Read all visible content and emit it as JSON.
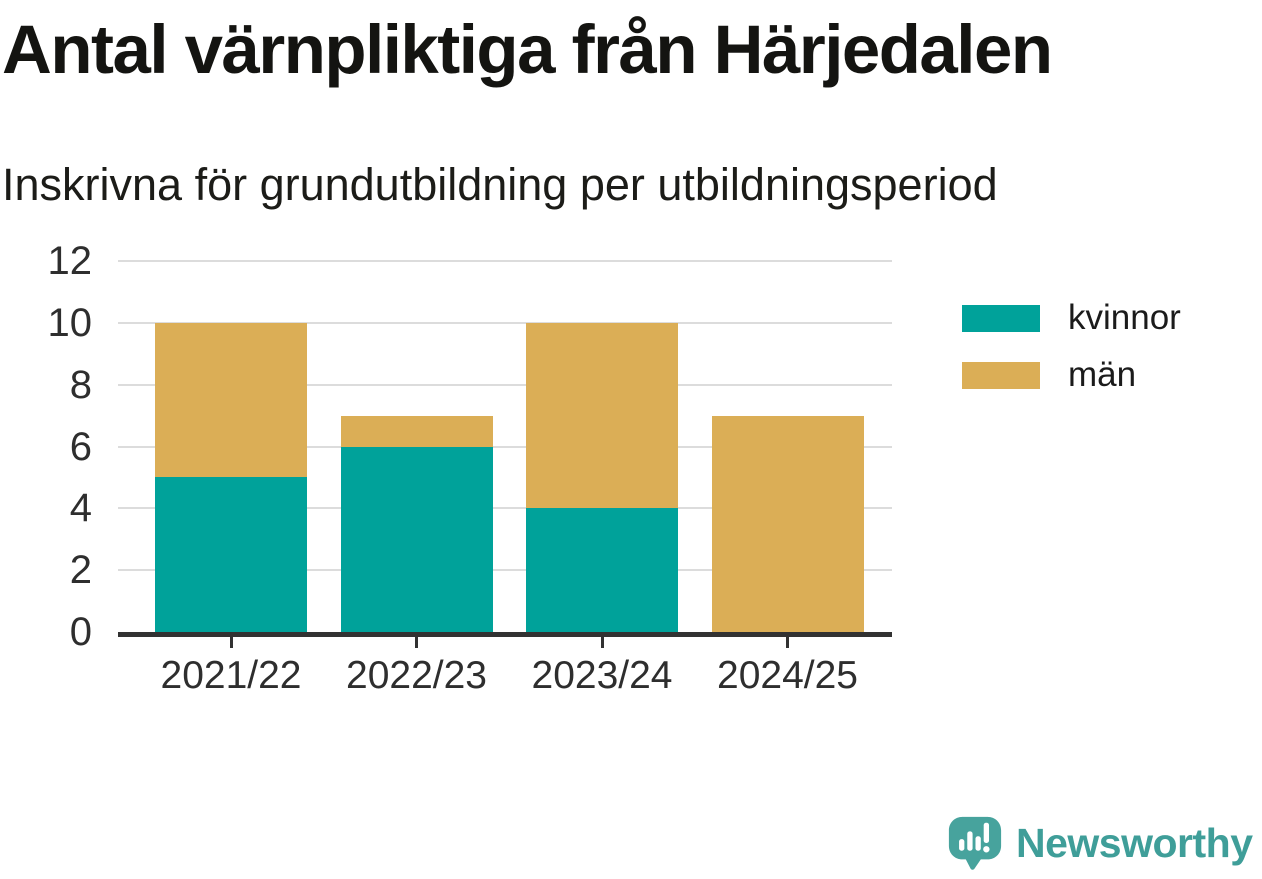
{
  "title": "Antal värnpliktiga från Härjedalen",
  "subtitle": "Inskrivna för grundutbildning per utbildningsperiod",
  "chart_data": {
    "type": "bar",
    "stacked": true,
    "title": "Antal värnpliktiga från Härjedalen",
    "subtitle": "Inskrivna för grundutbildning per utbildningsperiod",
    "categories": [
      "2021/22",
      "2022/23",
      "2023/24",
      "2024/25"
    ],
    "series": [
      {
        "name": "kvinnor",
        "color": "#00a29a",
        "values": [
          5,
          6,
          4,
          0
        ]
      },
      {
        "name": "män",
        "color": "#dbae56",
        "values": [
          5,
          1,
          6,
          7
        ]
      }
    ],
    "stack_totals": [
      10,
      7,
      10,
      7
    ],
    "xlabel": "",
    "ylabel": "",
    "ylim": [
      0,
      12
    ],
    "yticks": [
      0,
      2,
      4,
      6,
      8,
      10,
      12
    ],
    "grid": true,
    "gridline_color": "#dcdcdc",
    "axis_color": "#323232",
    "legend_position": "right"
  },
  "legend": {
    "items": [
      {
        "label": "kvinnor",
        "color": "#00a29a"
      },
      {
        "label": "män",
        "color": "#dbae56"
      }
    ]
  },
  "branding": {
    "name": "Newsworthy",
    "text_color": "#3f9e99",
    "logo_color": "#47a39d"
  }
}
